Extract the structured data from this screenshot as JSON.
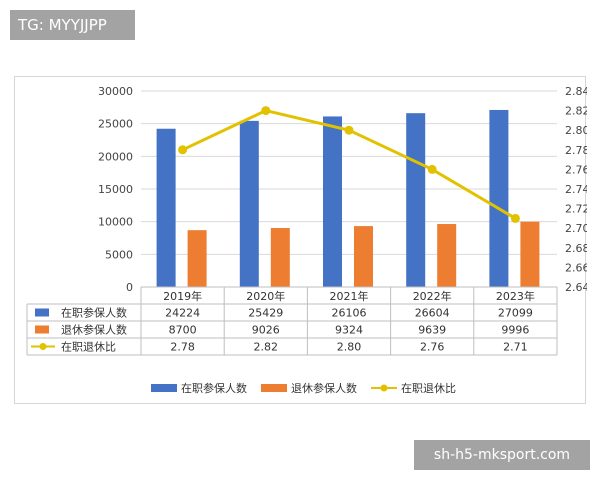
{
  "tag_label": "TG: MYYJJPP",
  "watermark_label": "sh-h5-mksport.com",
  "colors": {
    "bar_active": "#4472c4",
    "bar_retired": "#ed7d31",
    "line_ratio": "#e2c200",
    "grid": "#d9d9d9"
  },
  "chart_data": {
    "type": "bar",
    "categories": [
      "2019年",
      "2020年",
      "2021年",
      "2022年",
      "2023年"
    ],
    "series": [
      {
        "name": "在职参保人数",
        "values": [
          24224,
          25429,
          26106,
          26604,
          27099
        ],
        "axis": "left",
        "kind": "bar"
      },
      {
        "name": "退休参保人数",
        "values": [
          8700,
          9026,
          9324,
          9639,
          9996
        ],
        "axis": "left",
        "kind": "bar"
      },
      {
        "name": "在职退休比",
        "values": [
          2.78,
          2.82,
          2.8,
          2.76,
          2.71
        ],
        "axis": "right",
        "kind": "line"
      }
    ],
    "table_values": [
      [
        "24224",
        "25429",
        "26106",
        "26604",
        "27099"
      ],
      [
        "8700",
        "9026",
        "9324",
        "9639",
        "9996"
      ],
      [
        "2.78",
        "2.82",
        "2.80",
        "2.76",
        "2.71"
      ]
    ],
    "ylim_left": [
      0,
      30000
    ],
    "ylim_right": [
      2.64,
      2.84
    ],
    "yticks_left": [
      "30000",
      "25000",
      "20000",
      "15000",
      "10000",
      "5000",
      "0"
    ],
    "yticks_right": [
      "2.84",
      "2.82",
      "2.80",
      "2.78",
      "2.76",
      "2.74",
      "2.72",
      "2.70",
      "2.68",
      "2.66",
      "2.64"
    ],
    "grid": true,
    "legend_position": "bottom"
  }
}
